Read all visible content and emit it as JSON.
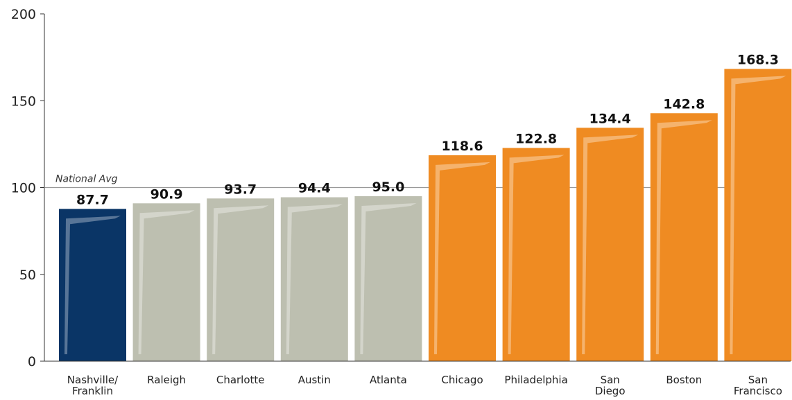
{
  "chart_data": {
    "type": "bar",
    "categories": [
      "Nashville/\nFranklin",
      "Raleigh",
      "Charlotte",
      "Austin",
      "Atlanta",
      "Chicago",
      "Philadelphia",
      "San\nDiego",
      "Boston",
      "San\nFrancisco"
    ],
    "values": [
      87.7,
      90.9,
      93.7,
      94.4,
      95.0,
      118.6,
      122.8,
      134.4,
      142.8,
      168.3
    ],
    "value_labels": [
      "87.7",
      "90.9",
      "93.7",
      "94.4",
      "95.0",
      "118.6",
      "122.8",
      "134.4",
      "142.8",
      "168.3"
    ],
    "bar_colors": [
      "#0a3566",
      "#bdbfb0",
      "#bdbfb0",
      "#bdbfb0",
      "#bdbfb0",
      "#ef8b22",
      "#ef8b22",
      "#ef8b22",
      "#ef8b22",
      "#ef8b22"
    ],
    "ylim": [
      0,
      200
    ],
    "yticks": [
      0,
      50,
      100,
      150,
      200
    ],
    "ytick_labels": [
      "0",
      "50",
      "100",
      "150",
      "200"
    ],
    "reference_line": {
      "value": 100,
      "label": "National Avg",
      "color": "#999999"
    },
    "title": "",
    "xlabel": "",
    "ylabel": "",
    "grid": false,
    "legend": "none"
  }
}
